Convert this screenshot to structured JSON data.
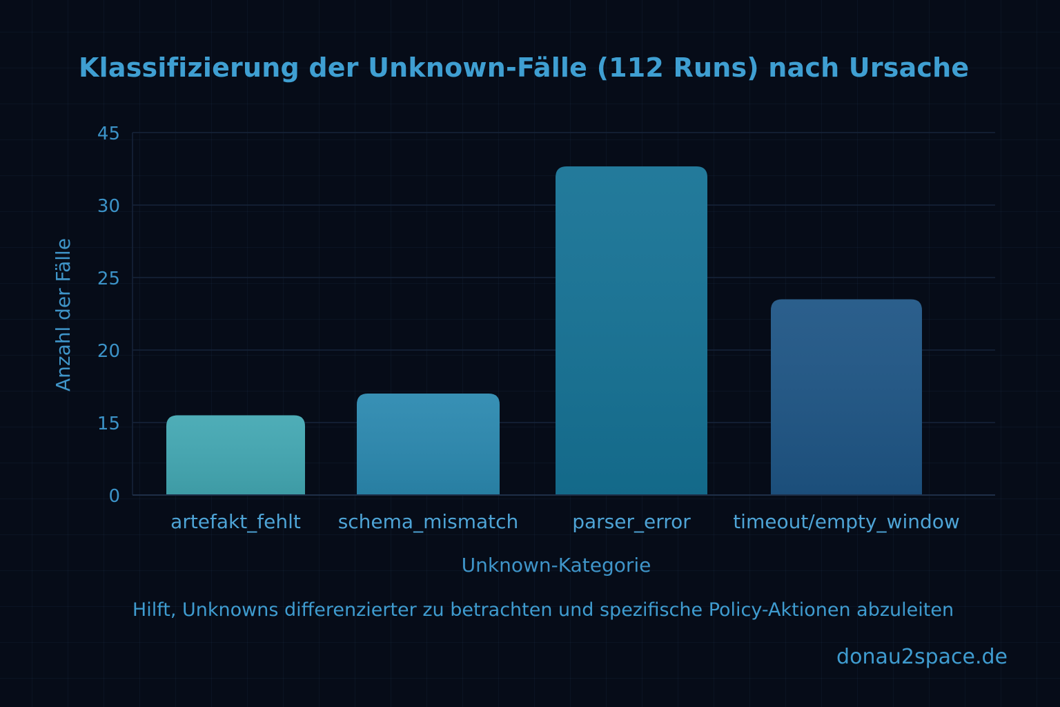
{
  "chart_data": {
    "type": "bar",
    "title": "Klassifizierung der Unknown-Fälle (112 Runs) nach Ursache",
    "subtitle": "Hilft, Unknowns differenzierter zu betrachten und spezifische Policy-Aktionen abzuleiten",
    "xlabel": "Unknown-Kategorie",
    "ylabel": "Anzahl der Fälle",
    "categories": [
      "artefakt_fehlt",
      "schema_mismatch",
      "parser_error",
      "timeout/empty_window"
    ],
    "values": [
      15.5,
      17,
      38,
      23.5
    ],
    "y_ticks": [
      "0",
      "15",
      "20",
      "25",
      "30",
      "45"
    ],
    "bar_colors": [
      "#43a8b3",
      "#2b89b0",
      "#157295",
      "#1e5585"
    ],
    "grid": true,
    "legend": "none"
  },
  "footer": {
    "credit": "donau2space.de"
  }
}
